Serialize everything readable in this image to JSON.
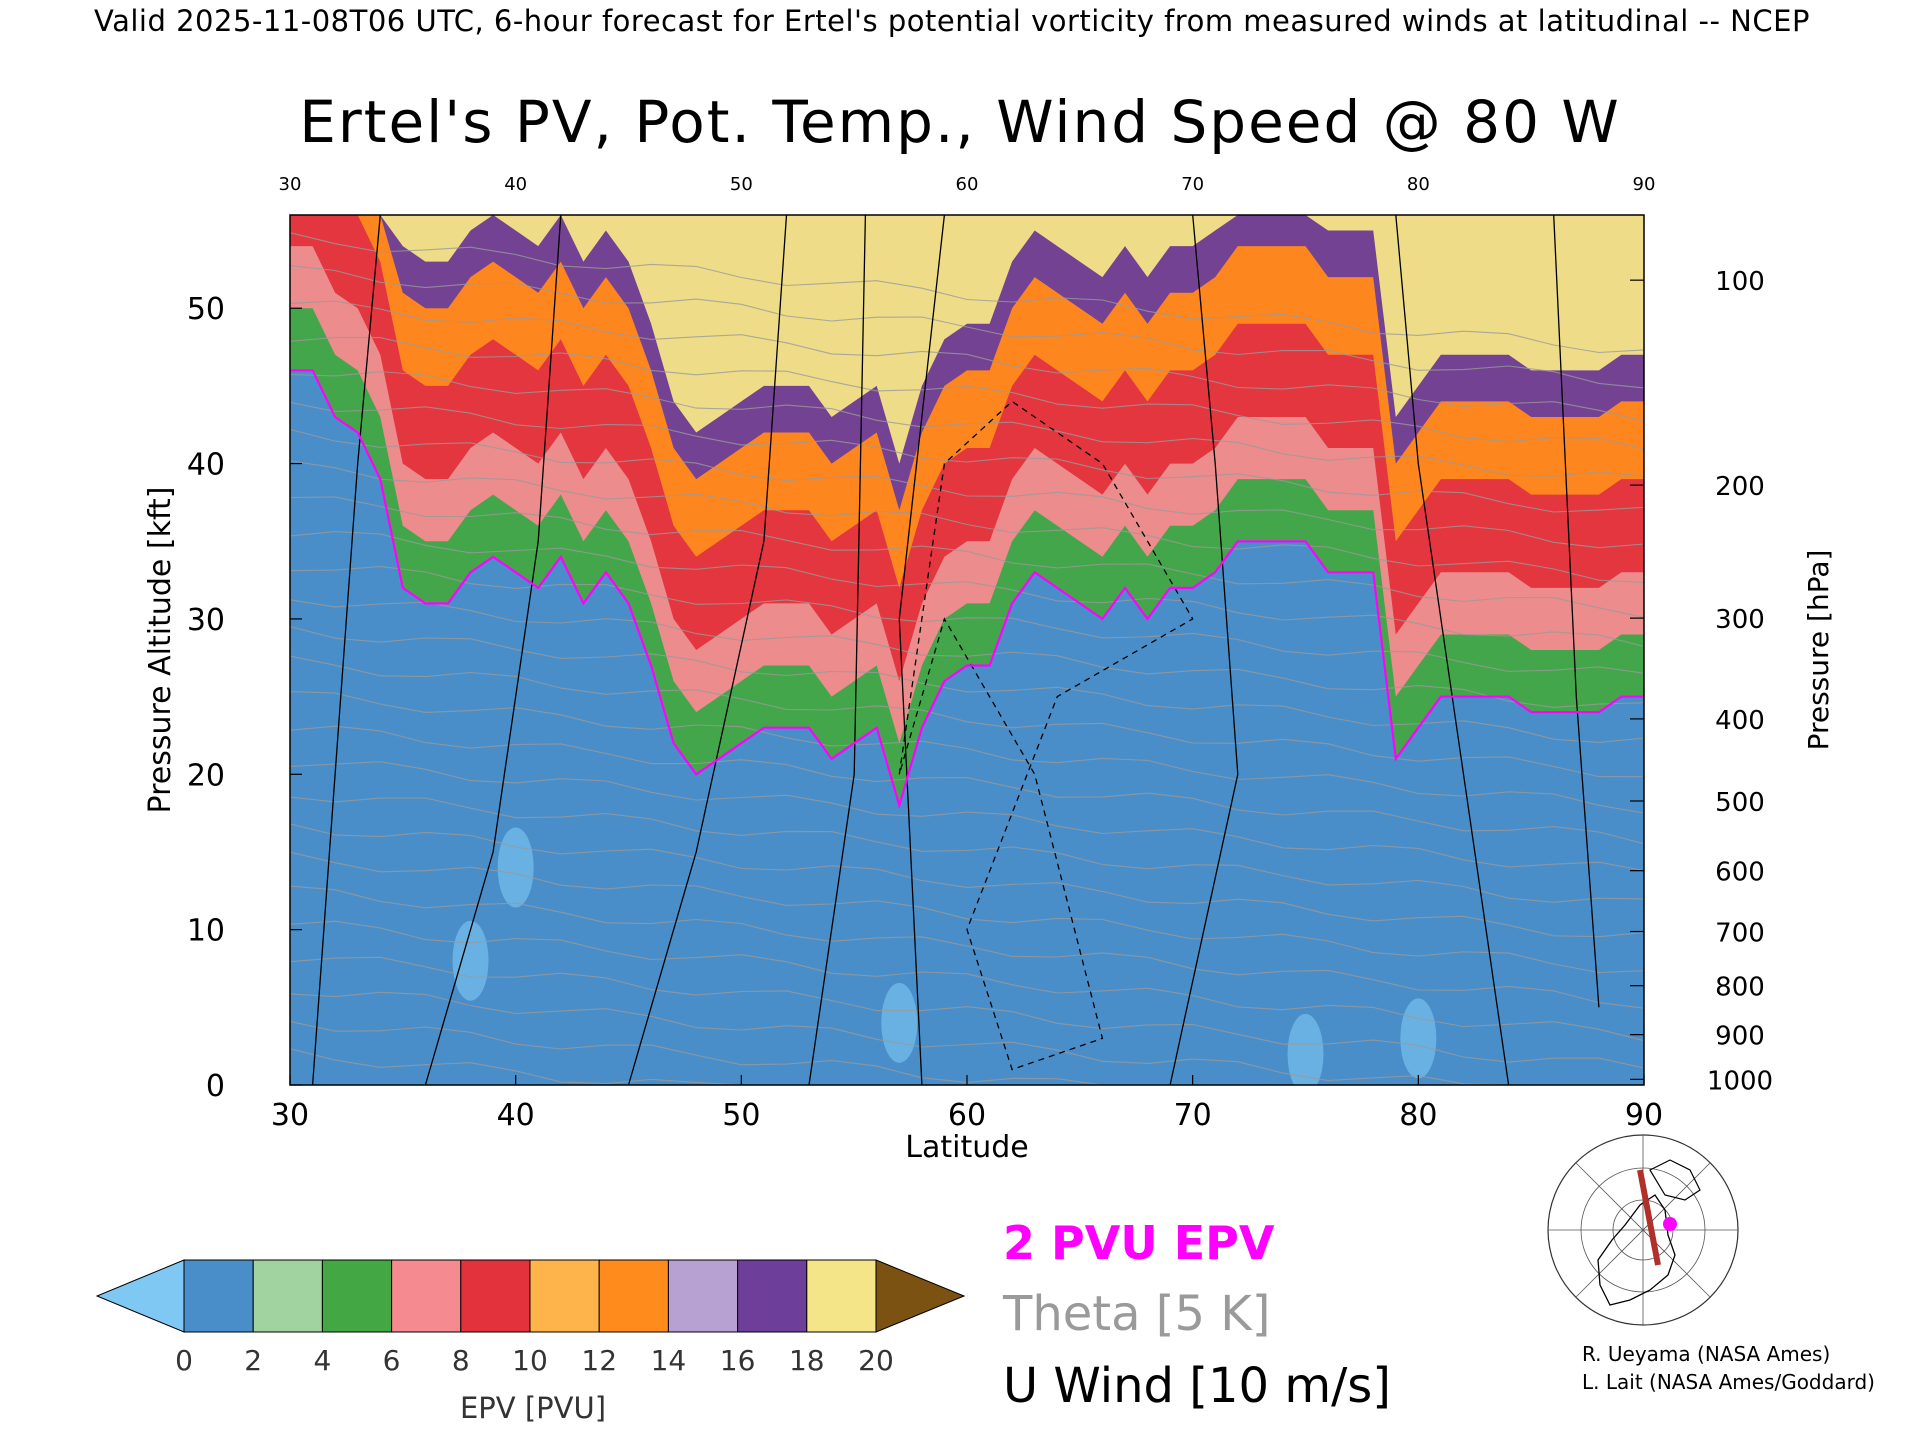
{
  "header": "Valid 2025-11-08T06 UTC, 6-hour forecast for Ertel's potential vorticity from measured winds at latitudinal -- NCEP",
  "colors": {
    "pv_contour": "#ff00ff",
    "theta": "#9a9a9a",
    "wind": "#000000"
  },
  "chart_data": {
    "type": "heatmap",
    "title": "Ertel's PV, Pot. Temp., Wind Speed @ 80 W",
    "xlabel": "Latitude",
    "ylabel": "Pressure Altitude [kft]",
    "y2label": "Pressure [hPa]",
    "xlim": [
      30,
      90
    ],
    "ylim": [
      0,
      56
    ],
    "x_ticks": [
      30,
      40,
      50,
      60,
      70,
      80,
      90
    ],
    "y_ticks": [
      0,
      10,
      20,
      30,
      40,
      50
    ],
    "pressure_ticks": [
      100,
      200,
      300,
      400,
      500,
      600,
      700,
      800,
      900,
      1000
    ],
    "grid": false,
    "tropopause_2pvu_kft": [
      [
        30,
        46
      ],
      [
        31,
        46
      ],
      [
        32,
        43
      ],
      [
        33,
        42
      ],
      [
        34,
        39
      ],
      [
        35,
        32
      ],
      [
        36,
        31
      ],
      [
        37,
        31
      ],
      [
        38,
        33
      ],
      [
        39,
        34
      ],
      [
        40,
        33
      ],
      [
        41,
        32
      ],
      [
        42,
        34
      ],
      [
        43,
        31
      ],
      [
        44,
        33
      ],
      [
        45,
        31
      ],
      [
        46,
        27
      ],
      [
        47,
        22
      ],
      [
        48,
        20
      ],
      [
        49,
        21
      ],
      [
        50,
        22
      ],
      [
        51,
        23
      ],
      [
        52,
        23
      ],
      [
        53,
        23
      ],
      [
        54,
        21
      ],
      [
        55,
        22
      ],
      [
        56,
        23
      ],
      [
        57,
        18
      ],
      [
        58,
        23
      ],
      [
        59,
        26
      ],
      [
        60,
        27
      ],
      [
        61,
        27
      ],
      [
        62,
        31
      ],
      [
        63,
        33
      ],
      [
        64,
        32
      ],
      [
        65,
        31
      ],
      [
        66,
        30
      ],
      [
        67,
        32
      ],
      [
        68,
        30
      ],
      [
        69,
        32
      ],
      [
        70,
        32
      ],
      [
        71,
        33
      ],
      [
        72,
        35
      ],
      [
        73,
        35
      ],
      [
        74,
        35
      ],
      [
        75,
        35
      ],
      [
        76,
        33
      ],
      [
        77,
        33
      ],
      [
        78,
        33
      ],
      [
        79,
        21
      ],
      [
        80,
        23
      ],
      [
        81,
        25
      ],
      [
        82,
        25
      ],
      [
        83,
        25
      ],
      [
        84,
        25
      ],
      [
        85,
        24
      ],
      [
        86,
        24
      ],
      [
        87,
        24
      ],
      [
        88,
        24
      ],
      [
        89,
        25
      ],
      [
        90,
        25
      ]
    ],
    "colorbar": {
      "label": "EPV [PVU]",
      "ticks": [
        0,
        2,
        4,
        6,
        8,
        10,
        12,
        14,
        16,
        18,
        20
      ],
      "colors": [
        "#4a8ec9",
        "#a0d3a0",
        "#43a843",
        "#f58a90",
        "#e3323b",
        "#ffb44b",
        "#ff8b1d",
        "#b7a0d2",
        "#6d3e9a",
        "#f4e588"
      ],
      "under_color": "#7ec8f3",
      "over_color": "#7b5212"
    },
    "legend": {
      "pv": "2 PVU EPV",
      "theta": "Theta [5 K]",
      "wind": "U Wind [10 m/s]"
    }
  },
  "credits": [
    "R. Ueyama (NASA Ames)",
    "L. Lait (NASA Ames/Goddard)"
  ]
}
